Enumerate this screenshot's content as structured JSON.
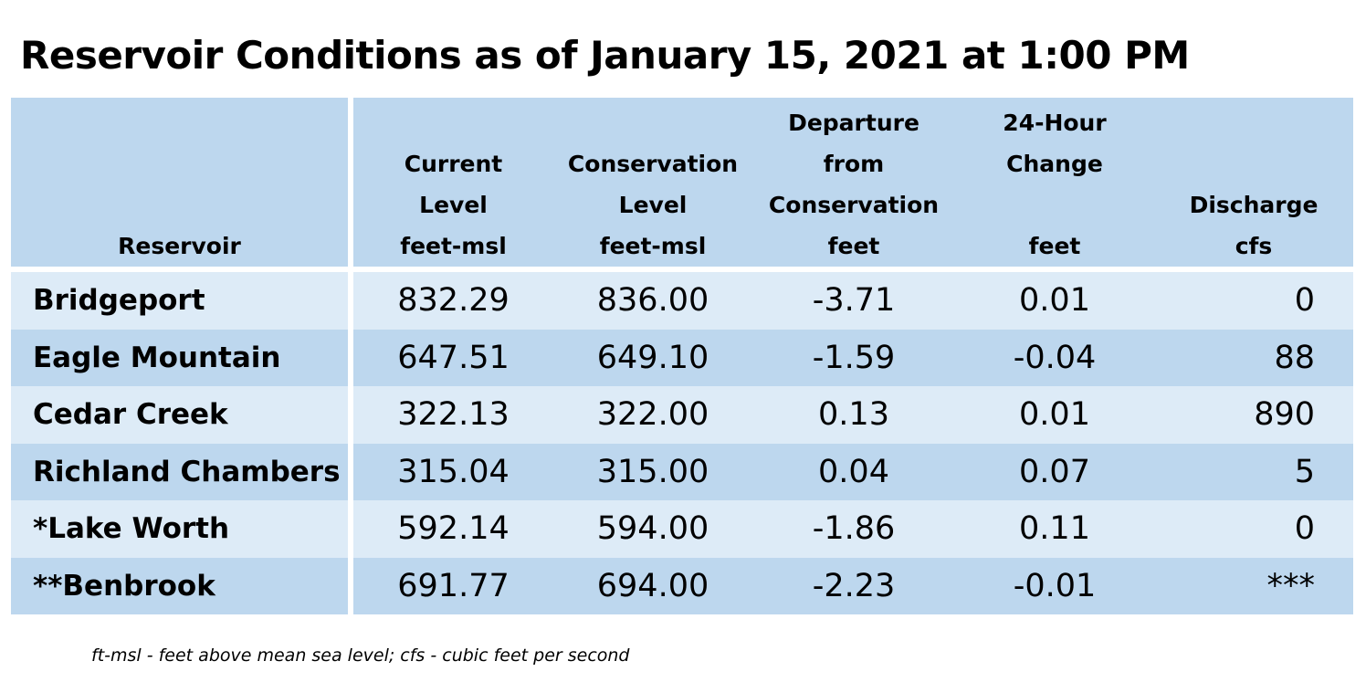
{
  "title": "Reservoir Conditions as of January 15, 2021 at 1:00 PM",
  "columns": [
    {
      "label": "Reservoir",
      "unit": ""
    },
    {
      "label": "Current Level",
      "unit": "feet-msl"
    },
    {
      "label": "Conservation Level",
      "unit": "feet-msl"
    },
    {
      "label": "Departure from Conservation",
      "unit": "feet"
    },
    {
      "label": "24-Hour Change",
      "unit": "feet"
    },
    {
      "label": "Discharge",
      "unit": "cfs"
    }
  ],
  "rows": [
    {
      "name": "Bridgeport",
      "current": "832.29",
      "conservation": "836.00",
      "departure": "-3.71",
      "change": "0.01",
      "discharge": "0"
    },
    {
      "name": "Eagle Mountain",
      "current": "647.51",
      "conservation": "649.10",
      "departure": "-1.59",
      "change": "-0.04",
      "discharge": "88"
    },
    {
      "name": "Cedar Creek",
      "current": "322.13",
      "conservation": "322.00",
      "departure": "0.13",
      "change": "0.01",
      "discharge": "890"
    },
    {
      "name": "Richland Chambers",
      "current": "315.04",
      "conservation": "315.00",
      "departure": "0.04",
      "change": "0.07",
      "discharge": "5"
    },
    {
      "name": "*Lake Worth",
      "current": "592.14",
      "conservation": "594.00",
      "departure": "-1.86",
      "change": "0.11",
      "discharge": "0"
    },
    {
      "name": "**Benbrook",
      "current": "691.77",
      "conservation": "694.00",
      "departure": "-2.23",
      "change": "-0.01",
      "discharge": "***"
    }
  ],
  "footnote": "ft-msl - feet above mean sea level; cfs - cubic feet per second"
}
